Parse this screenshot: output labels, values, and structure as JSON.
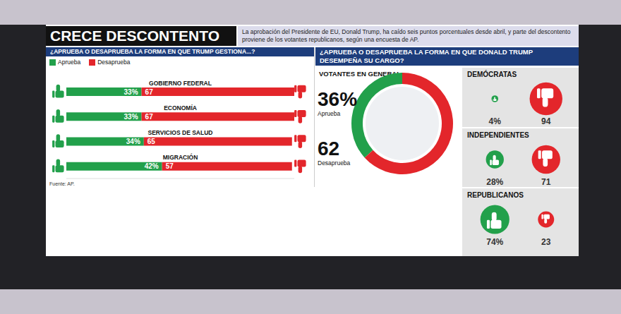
{
  "title": "CRECE DESCONTENTO",
  "subtitle": "La aprobación del Presidente de EU, Donald Trump, ha caído seis puntos porcentuales desde abril, y parte del descontento proviene de los votantes republicanos, según una encuesta de AP.",
  "source": "Fuente: AP.",
  "chart_data": [
    {
      "type": "bar",
      "title": "¿APRUEBA O DESAPRUEBA LA FORMA EN QUE TRUMP GESTIONA...?",
      "categories": [
        "GOBIERNO FEDERAL",
        "ECONOMÍA",
        "SERVICIOS DE SALUD",
        "MIGRACIÓN"
      ],
      "series": [
        {
          "name": "Aprueba",
          "color": "#22a04b",
          "values": [
            33,
            33,
            34,
            42
          ],
          "value_labels": [
            "33%",
            "33%",
            "34%",
            "42%"
          ]
        },
        {
          "name": "Desaprueba",
          "color": "#e3262b",
          "values": [
            67,
            67,
            65,
            57
          ]
        }
      ],
      "xlim": [
        0,
        100
      ],
      "orientation": "horizontal",
      "stacked": true,
      "data_labels": true,
      "tick_labels": false,
      "legend": "top left"
    },
    {
      "type": "pie",
      "title": "¿APRUEBA O DESAPRUEBA LA FORMA EN QUE DONALD TRUMP DESEMPEÑA SU CARGO?",
      "subtitle": "VOTANTES EN GENERAL:",
      "categories": [
        "Aprueba",
        "Desaprueba"
      ],
      "values": [
        36,
        62
      ],
      "value_labels": [
        "36%",
        "62"
      ],
      "colors": [
        "#22a04b",
        "#e3262b"
      ]
    },
    {
      "type": "bubble",
      "categories": [
        "DEMÓCRATAS",
        "INDEPENDIENTES",
        "REPUBLICANOS"
      ],
      "series": [
        {
          "name": "Aprueba",
          "color": "#22a04b",
          "values": [
            4,
            28,
            74
          ],
          "value_labels": [
            "4%",
            "28%",
            "74%"
          ]
        },
        {
          "name": "Desaprueba",
          "color": "#e3262b",
          "values": [
            94,
            71,
            23
          ]
        }
      ],
      "size_range": [
        0,
        100
      ]
    }
  ]
}
